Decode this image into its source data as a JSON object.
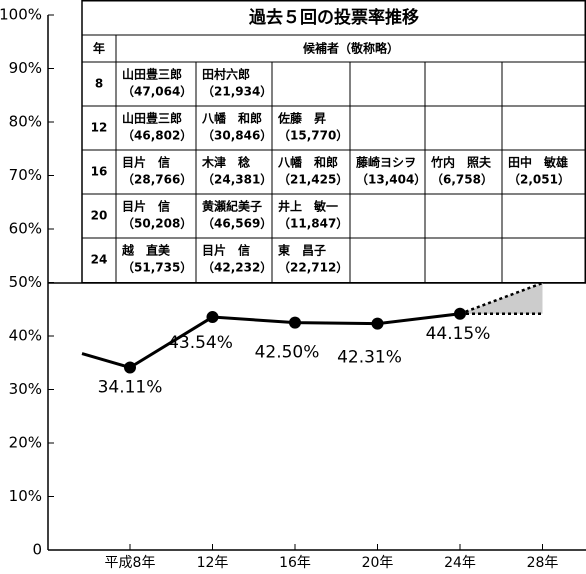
{
  "chart_data": {
    "type": "line",
    "categories": [
      "平成8年",
      "12年",
      "16年",
      "20年",
      "24年",
      "28年"
    ],
    "values": [
      34.11,
      43.54,
      42.5,
      42.31,
      44.15,
      null
    ],
    "value_labels": [
      "34.11%",
      "43.54%",
      "42.50%",
      "42.31%",
      "44.15%",
      null
    ],
    "color": "#000000",
    "ylim": [
      0,
      100
    ],
    "yticks": [
      0,
      {
        "value": 10,
        "label": "10%"
      },
      {
        "value": 20,
        "label": "20%"
      },
      {
        "value": 30,
        "label": "30%"
      },
      {
        "value": 40,
        "label": "40%"
      },
      {
        "value": 50,
        "label": "50%"
      },
      {
        "value": 60,
        "label": "60%"
      },
      {
        "value": 70,
        "label": "70%"
      },
      {
        "value": 80,
        "label": "80%"
      },
      {
        "value": 90,
        "label": "90%"
      },
      {
        "value": 100,
        "label": "100%"
      }
    ]
  },
  "table": {
    "title": "過去５回の投票率推移",
    "headers": [
      "年",
      "候補者（敬称略）"
    ],
    "rows": [
      {
        "year": "8",
        "candidates": [
          {
            "name": "山田豊三郎",
            "votes": "（47,064）"
          },
          {
            "name": "田村六郎",
            "votes": "（21,934）"
          }
        ]
      },
      {
        "year": "12",
        "candidates": [
          {
            "name": "山田豊三郎",
            "votes": "（46,802）"
          },
          {
            "name": "八幡　和郎",
            "votes": "（30,846）"
          },
          {
            "name": "佐藤　昇",
            "votes": "（15,770）"
          }
        ]
      },
      {
        "year": "16",
        "candidates": [
          {
            "name": "目片　信",
            "votes": "（28,766）"
          },
          {
            "name": "木津　稔",
            "votes": "（24,381）"
          },
          {
            "name": "八幡　和郎",
            "votes": "（21,425）"
          },
          {
            "name": "藤崎ヨシヲ",
            "votes": "（13,404）"
          },
          {
            "name": "竹内　照夫",
            "votes": "（6,758）"
          },
          {
            "name": "田中　敏雄",
            "votes": "（2,051）"
          }
        ]
      },
      {
        "year": "20",
        "candidates": [
          {
            "name": "目片　信",
            "votes": "（50,208）"
          },
          {
            "name": "黄瀬紀美子",
            "votes": "（46,569）"
          },
          {
            "name": "井上　敏一",
            "votes": "（11,847）"
          }
        ]
      },
      {
        "year": "24",
        "candidates": [
          {
            "name": "越　直美",
            "votes": "（51,735）"
          },
          {
            "name": "目片　信",
            "votes": "（42,232）"
          },
          {
            "name": "東　昌子",
            "votes": "（22,712）"
          }
        ]
      }
    ]
  }
}
